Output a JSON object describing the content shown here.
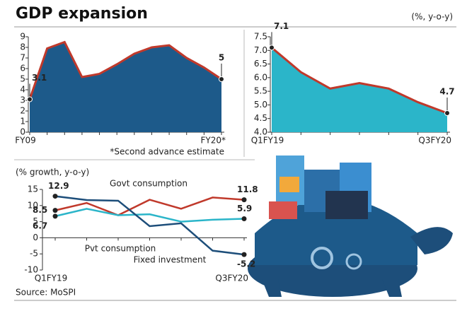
{
  "header": {
    "title": "GDP expansion",
    "unit": "(%, y-o-y)"
  },
  "source": "Source: MoSPI",
  "chart_data": [
    {
      "type": "area",
      "color": "#1d5a8a",
      "line_color": "#c0392b",
      "categories": [
        "FY09",
        null,
        null,
        null,
        null,
        null,
        null,
        null,
        null,
        null,
        null,
        "FY20*"
      ],
      "values": [
        3.1,
        7.9,
        8.5,
        5.2,
        5.5,
        6.4,
        7.4,
        8.0,
        8.2,
        7.0,
        6.1,
        5
      ],
      "annotation": "*Second advance estimate",
      "ylim": [
        0,
        9
      ],
      "yticks": [
        0,
        1,
        2,
        3,
        4,
        5,
        6,
        7,
        8,
        9
      ]
    },
    {
      "type": "area",
      "color": "#2bb5c9",
      "line_color": "#c0392b",
      "categories": [
        "Q1FY19",
        null,
        null,
        null,
        null,
        null,
        "Q3FY20"
      ],
      "values": [
        7.1,
        6.2,
        5.6,
        5.8,
        5.6,
        5.1,
        4.7
      ],
      "ylim": [
        4,
        7.5
      ],
      "yticks": [
        {
          "value": 4,
          "label": "4.0"
        },
        4.5,
        {
          "value": 5,
          "label": "5.0"
        },
        5.5,
        {
          "value": 6,
          "label": "6.0"
        },
        6.5,
        {
          "value": 7,
          "label": "7.0"
        },
        7.5
      ]
    },
    {
      "type": "line",
      "y_label": "(% growth, y-o-y)",
      "categories": [
        "Q1FY19",
        null,
        null,
        null,
        null,
        null,
        "Q3FY20"
      ],
      "series": [
        {
          "name": "Govt consumption",
          "color": "#c0392b",
          "values": [
            8.5,
            10.8,
            7,
            11.8,
            9,
            12.5,
            11.8
          ]
        },
        {
          "name": "Pvt consumption",
          "color": "#2bb5c9",
          "values": [
            6.7,
            9,
            7,
            7.3,
            5,
            5.6,
            5.9
          ]
        },
        {
          "name": "Fixed investment",
          "color": "#1d4e7a",
          "values": [
            12.9,
            11.7,
            11.5,
            3.6,
            4.5,
            -4.0,
            -5.2
          ]
        }
      ],
      "ylim": [
        -10,
        15
      ],
      "yticks": [
        -10,
        -5,
        0,
        5,
        10,
        15
      ]
    }
  ]
}
